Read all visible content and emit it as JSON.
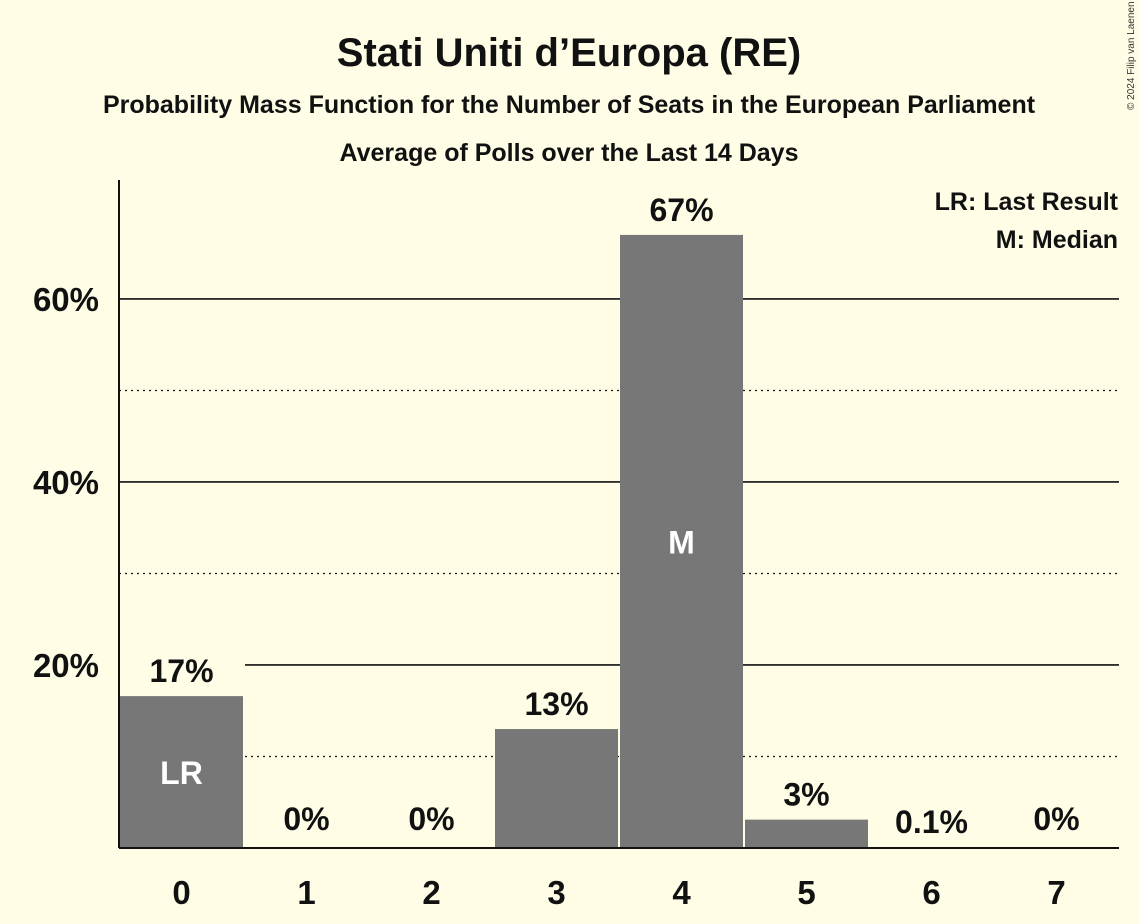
{
  "chart_data": {
    "type": "bar",
    "title": "Stati Uniti d’Europa (RE)",
    "subtitle": "Probability Mass Function for the Number of Seats in the European Parliament",
    "subtitle2": "Average of Polls over the Last 14 Days",
    "categories": [
      "0",
      "1",
      "2",
      "3",
      "4",
      "5",
      "6",
      "7"
    ],
    "values": [
      16.6,
      0,
      0,
      13,
      67,
      3.1,
      0.1,
      0
    ],
    "value_labels": [
      "17%",
      "0%",
      "0%",
      "13%",
      "67%",
      "3%",
      "0.1%",
      "0%"
    ],
    "bar_annotations": [
      {
        "category": "0",
        "text": "LR"
      },
      {
        "category": "4",
        "text": "M"
      }
    ],
    "ylim": [
      0,
      73
    ],
    "yticks": [
      {
        "value": 20,
        "label": "20%"
      },
      {
        "value": 40,
        "label": "40%"
      },
      {
        "value": 60,
        "label": "60%"
      }
    ],
    "minor_gridlines": [
      10,
      30,
      50
    ],
    "legend": [
      "LR: Last Result",
      "M: Median"
    ],
    "legend_position": "top-right",
    "bar_color": "#777777",
    "background_color": "#fffde6",
    "copyright": "© 2024 Filip van Laenen"
  }
}
